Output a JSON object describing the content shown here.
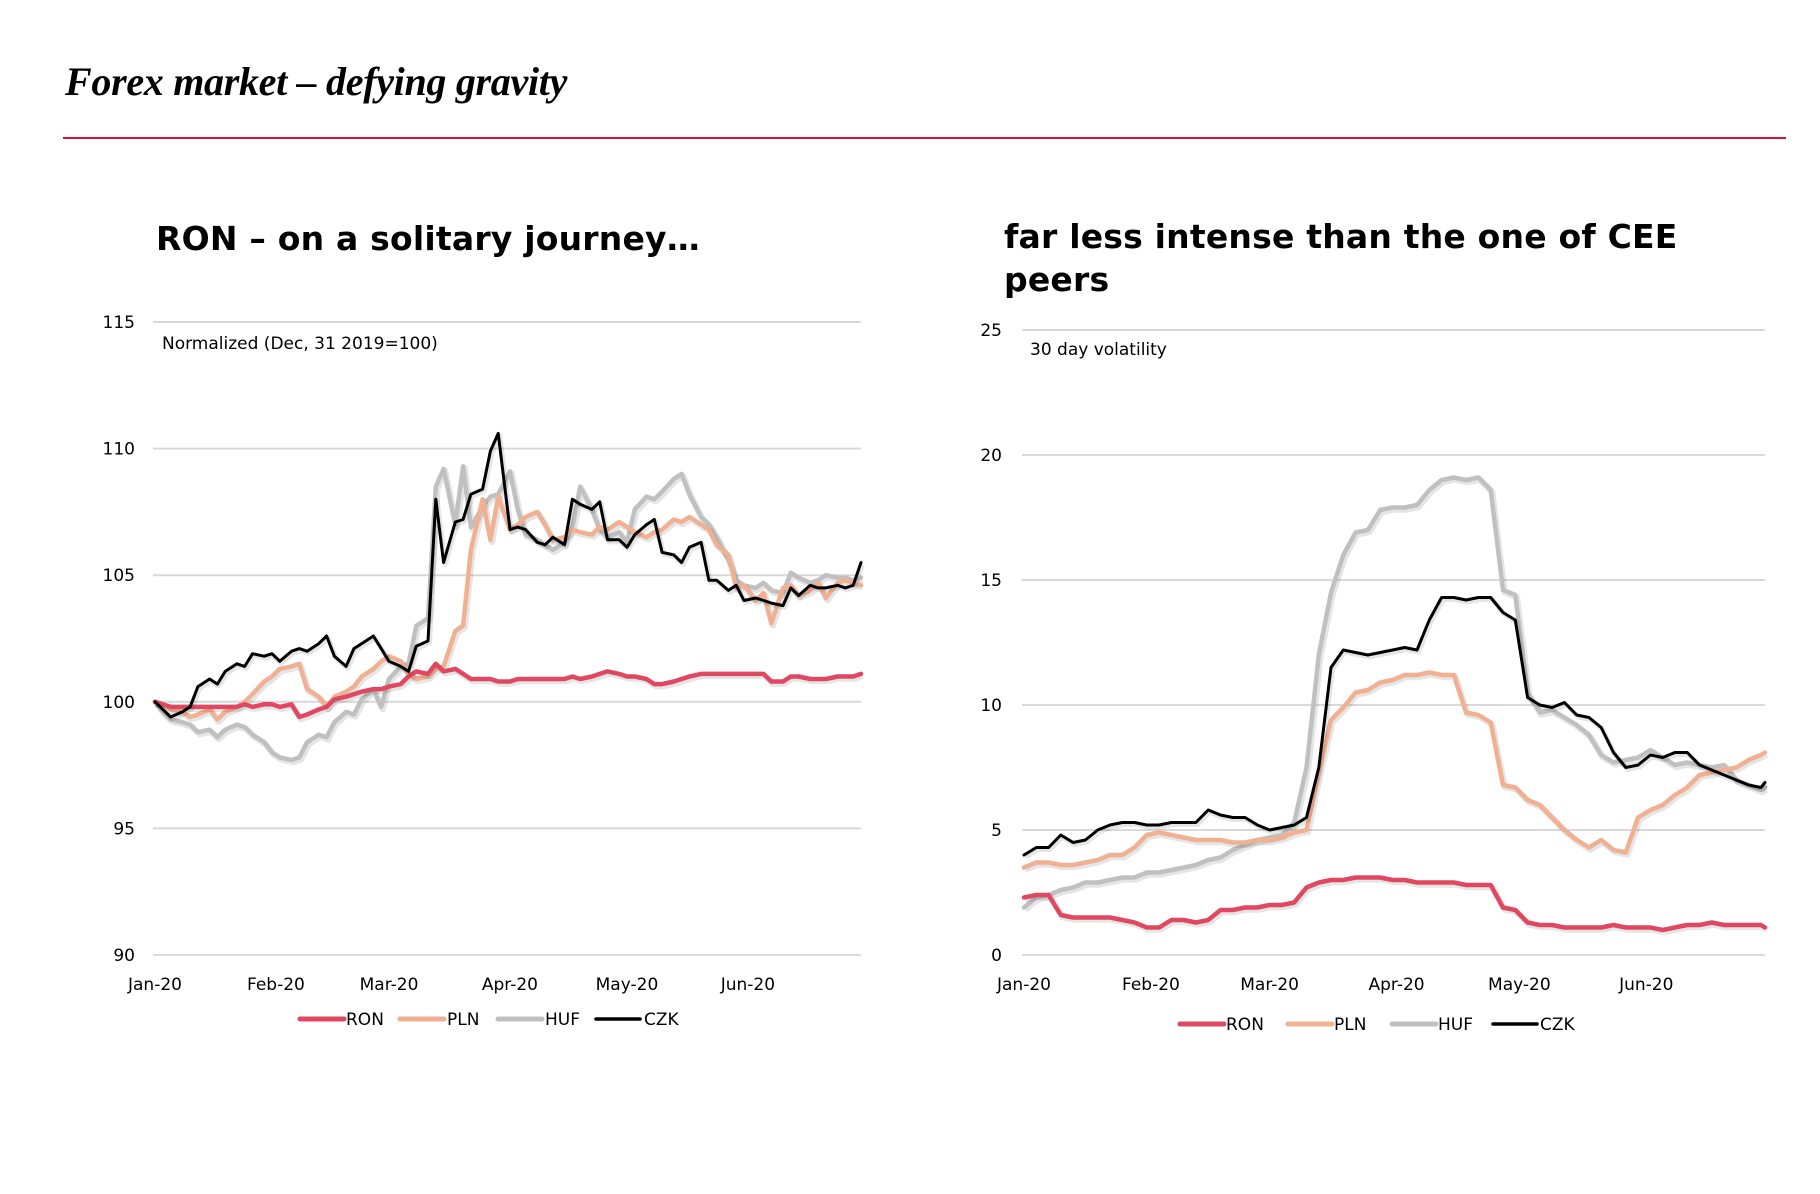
{
  "page": {
    "title": "Forex market – defying gravity",
    "accent_color": "#d0143c"
  },
  "colors": {
    "RON": "#e04862",
    "PLN": "#f2b092",
    "HUF": "#c0c0c0",
    "CZK": "#000000",
    "grid": "#d9d9d9"
  },
  "chart_data": [
    {
      "type": "line",
      "title": "RON – on a solitary journey…",
      "unit_label": "Normalized (Dec, 31 2019=100)",
      "xlabel": "",
      "ylabel": "",
      "ylim": [
        90,
        115
      ],
      "yticks": [
        90,
        95,
        100,
        105,
        110,
        115
      ],
      "xlim_days": [
        0,
        181
      ],
      "xticks": [
        {
          "label": "Jan-20",
          "day": 0
        },
        {
          "label": "Feb-20",
          "day": 31
        },
        {
          "label": "Mar-20",
          "day": 60
        },
        {
          "label": "Apr-20",
          "day": 91
        },
        {
          "label": "May-20",
          "day": 121
        },
        {
          "label": "Jun-20",
          "day": 152
        }
      ],
      "grid": true,
      "legend": "bottom",
      "x_days": [
        0,
        2,
        4,
        7,
        9,
        11,
        14,
        16,
        18,
        21,
        23,
        25,
        28,
        30,
        32,
        35,
        37,
        39,
        42,
        44,
        46,
        49,
        51,
        53,
        56,
        58,
        60,
        63,
        65,
        67,
        70,
        72,
        74,
        77,
        79,
        81,
        84,
        86,
        88,
        91,
        93,
        95,
        98,
        100,
        102,
        105,
        107,
        109,
        112,
        114,
        116,
        119,
        121,
        123,
        126,
        128,
        130,
        133,
        135,
        137,
        140,
        142,
        144,
        147,
        149,
        151,
        154,
        156,
        158,
        161,
        163,
        165,
        168,
        170,
        172,
        175,
        177,
        179,
        181
      ],
      "series": [
        {
          "name": "RON",
          "values": [
            100,
            99.9,
            99.8,
            99.8,
            99.8,
            99.8,
            99.8,
            99.8,
            99.8,
            99.8,
            99.9,
            99.8,
            99.9,
            99.9,
            99.8,
            99.9,
            99.4,
            99.5,
            99.7,
            99.8,
            100.1,
            100.2,
            100.3,
            100.4,
            100.5,
            100.5,
            100.6,
            100.7,
            101.0,
            101.2,
            101.1,
            101.5,
            101.2,
            101.3,
            101.1,
            100.9,
            100.9,
            100.9,
            100.8,
            100.8,
            100.9,
            100.9,
            100.9,
            100.9,
            100.9,
            100.9,
            101.0,
            100.9,
            101.0,
            101.1,
            101.2,
            101.1,
            101.0,
            101.0,
            100.9,
            100.7,
            100.7,
            100.8,
            100.9,
            101.0,
            101.1,
            101.1,
            101.1,
            101.1,
            101.1,
            101.1,
            101.1,
            101.1,
            100.8,
            100.8,
            101.0,
            101.0,
            100.9,
            100.9,
            100.9,
            101.0,
            101.0,
            101.0,
            101.1
          ]
        },
        {
          "name": "PLN",
          "values": [
            100,
            99.9,
            99.7,
            99.6,
            99.4,
            99.5,
            99.7,
            99.3,
            99.6,
            99.8,
            100.0,
            100.3,
            100.8,
            101.0,
            101.3,
            101.4,
            101.5,
            100.5,
            100.2,
            99.8,
            100.2,
            100.4,
            100.6,
            101.0,
            101.3,
            101.6,
            101.8,
            101.6,
            101.1,
            100.9,
            101.0,
            101.3,
            101.4,
            102.8,
            103.0,
            106.0,
            108.0,
            106.4,
            108.1,
            106.8,
            107.0,
            107.3,
            107.5,
            107.0,
            106.4,
            106.5,
            106.8,
            106.7,
            106.6,
            106.9,
            106.8,
            107.1,
            106.9,
            106.7,
            106.5,
            106.7,
            106.8,
            107.2,
            107.1,
            107.3,
            107.0,
            106.8,
            106.2,
            105.8,
            104.5,
            104.6,
            104.0,
            104.3,
            103.1,
            104.5,
            104.6,
            104.2,
            104.4,
            104.7,
            104.1,
            104.7,
            104.8,
            104.7,
            104.6
          ]
        },
        {
          "name": "HUF",
          "values": [
            100,
            99.6,
            99.3,
            99.2,
            99.1,
            98.8,
            98.9,
            98.6,
            98.9,
            99.1,
            99.0,
            98.7,
            98.4,
            98.0,
            97.8,
            97.7,
            97.8,
            98.4,
            98.7,
            98.6,
            99.2,
            99.6,
            99.5,
            100.1,
            100.5,
            99.8,
            100.9,
            101.4,
            101.5,
            103.0,
            103.3,
            108.5,
            109.2,
            107.0,
            109.3,
            106.9,
            107.7,
            108.1,
            108.2,
            109.1,
            107.6,
            106.6,
            106.4,
            106.2,
            106.0,
            106.3,
            106.9,
            108.5,
            107.6,
            106.8,
            106.5,
            106.7,
            106.3,
            107.6,
            108.1,
            108.0,
            108.3,
            108.8,
            109.0,
            108.2,
            107.3,
            107.0,
            106.5,
            105.6,
            104.8,
            104.6,
            104.5,
            104.7,
            104.4,
            104.3,
            105.1,
            104.9,
            104.7,
            104.8,
            105.0,
            104.9,
            104.9,
            104.8,
            104.9
          ]
        },
        {
          "name": "CZK",
          "values": [
            100,
            99.7,
            99.4,
            99.6,
            99.8,
            100.6,
            100.9,
            100.7,
            101.2,
            101.5,
            101.4,
            101.9,
            101.8,
            101.9,
            101.6,
            102.0,
            102.1,
            102.0,
            102.3,
            102.6,
            101.8,
            101.4,
            102.1,
            102.3,
            102.6,
            102.1,
            101.6,
            101.4,
            101.2,
            102.2,
            102.4,
            108.0,
            105.5,
            107.1,
            107.2,
            108.2,
            108.4,
            109.9,
            110.6,
            106.8,
            106.9,
            106.8,
            106.3,
            106.2,
            106.5,
            106.2,
            108.0,
            107.8,
            107.6,
            107.9,
            106.4,
            106.4,
            106.1,
            106.6,
            107.0,
            107.2,
            105.9,
            105.8,
            105.5,
            106.1,
            106.3,
            104.8,
            104.8,
            104.4,
            104.6,
            104.0,
            104.1,
            104.0,
            103.9,
            103.8,
            104.5,
            104.2,
            104.6,
            104.5,
            104.5,
            104.6,
            104.5,
            104.6,
            105.5
          ]
        }
      ]
    },
    {
      "type": "line",
      "title": "far less intense than the one of CEE peers",
      "unit_label": "30 day volatility",
      "xlabel": "",
      "ylabel": "",
      "ylim": [
        0,
        25
      ],
      "yticks": [
        0,
        5,
        10,
        15,
        20,
        25
      ],
      "xlim_days": [
        0,
        181
      ],
      "xticks": [
        {
          "label": "Jan-20",
          "day": 0
        },
        {
          "label": "Feb-20",
          "day": 31
        },
        {
          "label": "Mar-20",
          "day": 60
        },
        {
          "label": "Apr-20",
          "day": 91
        },
        {
          "label": "May-20",
          "day": 121
        },
        {
          "label": "Jun-20",
          "day": 152
        }
      ],
      "grid": true,
      "legend": "bottom",
      "x_days": [
        0,
        3,
        6,
        9,
        12,
        15,
        18,
        21,
        24,
        27,
        30,
        33,
        36,
        39,
        42,
        45,
        48,
        51,
        54,
        57,
        60,
        63,
        66,
        69,
        72,
        75,
        78,
        81,
        84,
        87,
        90,
        93,
        96,
        99,
        102,
        105,
        108,
        111,
        114,
        117,
        120,
        123,
        126,
        129,
        132,
        135,
        138,
        141,
        144,
        147,
        150,
        153,
        156,
        159,
        162,
        165,
        168,
        171,
        174,
        177,
        180,
        181
      ],
      "series": [
        {
          "name": "RON",
          "values": [
            2.3,
            2.4,
            2.4,
            1.6,
            1.5,
            1.5,
            1.5,
            1.5,
            1.4,
            1.3,
            1.1,
            1.1,
            1.4,
            1.4,
            1.3,
            1.4,
            1.8,
            1.8,
            1.9,
            1.9,
            2.0,
            2.0,
            2.1,
            2.7,
            2.9,
            3.0,
            3.0,
            3.1,
            3.1,
            3.1,
            3.0,
            3.0,
            2.9,
            2.9,
            2.9,
            2.9,
            2.8,
            2.8,
            2.8,
            1.9,
            1.8,
            1.3,
            1.2,
            1.2,
            1.1,
            1.1,
            1.1,
            1.1,
            1.2,
            1.1,
            1.1,
            1.1,
            1.0,
            1.1,
            1.2,
            1.2,
            1.3,
            1.2,
            1.2,
            1.2,
            1.2,
            1.1
          ]
        },
        {
          "name": "PLN",
          "values": [
            3.5,
            3.7,
            3.7,
            3.6,
            3.6,
            3.7,
            3.8,
            4.0,
            4.0,
            4.3,
            4.8,
            4.9,
            4.8,
            4.7,
            4.6,
            4.6,
            4.6,
            4.5,
            4.5,
            4.6,
            4.6,
            4.7,
            4.9,
            5.0,
            7.3,
            9.4,
            9.9,
            10.5,
            10.6,
            10.9,
            11.0,
            11.2,
            11.2,
            11.3,
            11.2,
            11.2,
            9.7,
            9.6,
            9.3,
            6.8,
            6.7,
            6.2,
            6.0,
            5.5,
            5.0,
            4.6,
            4.3,
            4.6,
            4.2,
            4.1,
            5.5,
            5.8,
            6.0,
            6.4,
            6.7,
            7.2,
            7.3,
            7.4,
            7.5,
            7.8,
            8.0,
            8.1
          ]
        },
        {
          "name": "HUF",
          "values": [
            1.9,
            2.3,
            2.4,
            2.6,
            2.7,
            2.9,
            2.9,
            3.0,
            3.1,
            3.1,
            3.3,
            3.3,
            3.4,
            3.5,
            3.6,
            3.8,
            3.9,
            4.2,
            4.4,
            4.6,
            4.7,
            4.8,
            5.3,
            7.5,
            12.0,
            14.5,
            16.0,
            16.9,
            17.0,
            17.8,
            17.9,
            17.9,
            18.0,
            18.6,
            19.0,
            19.1,
            19.0,
            19.1,
            18.6,
            14.6,
            14.4,
            10.5,
            9.7,
            9.8,
            9.5,
            9.2,
            8.8,
            8.0,
            7.7,
            7.8,
            7.9,
            8.2,
            7.9,
            7.6,
            7.7,
            7.6,
            7.5,
            7.6,
            7.0,
            6.8,
            6.6,
            6.7
          ]
        },
        {
          "name": "CZK",
          "values": [
            4.0,
            4.3,
            4.3,
            4.8,
            4.5,
            4.6,
            5.0,
            5.2,
            5.3,
            5.3,
            5.2,
            5.2,
            5.3,
            5.3,
            5.3,
            5.8,
            5.6,
            5.5,
            5.5,
            5.2,
            5.0,
            5.1,
            5.2,
            5.5,
            7.5,
            11.5,
            12.2,
            12.1,
            12.0,
            12.1,
            12.2,
            12.3,
            12.2,
            13.4,
            14.3,
            14.3,
            14.2,
            14.3,
            14.3,
            13.7,
            13.4,
            10.3,
            10.0,
            9.9,
            10.1,
            9.6,
            9.5,
            9.1,
            8.1,
            7.5,
            7.6,
            8.0,
            7.9,
            8.1,
            8.1,
            7.6,
            7.4,
            7.2,
            7.0,
            6.8,
            6.7,
            6.9
          ]
        }
      ]
    }
  ]
}
